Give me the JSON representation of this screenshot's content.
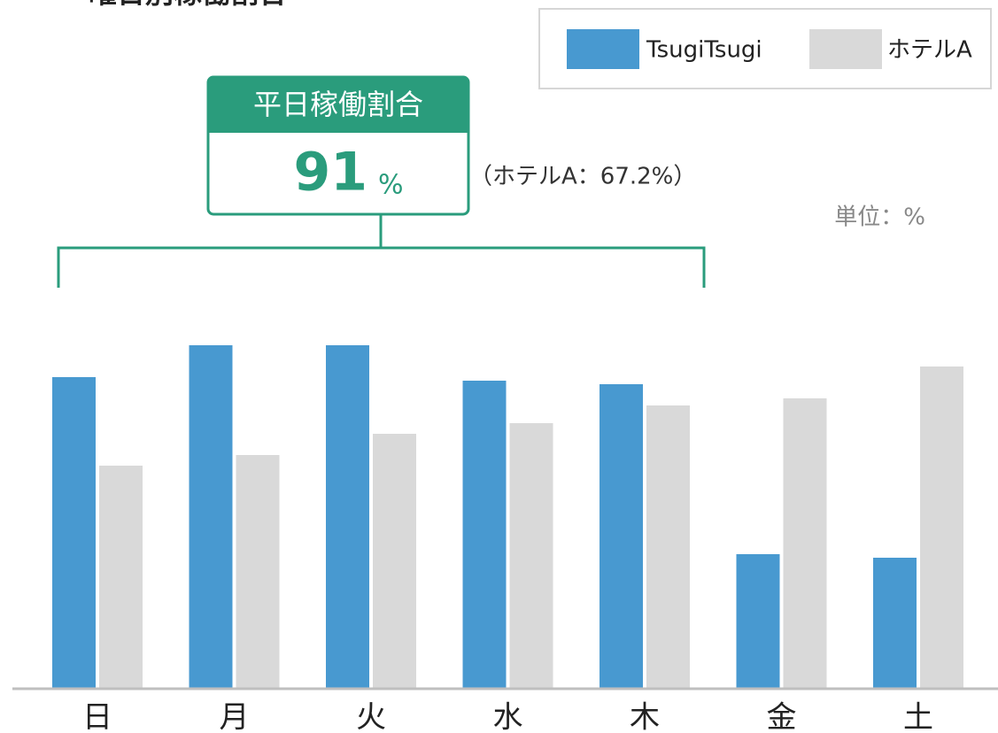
{
  "chart_data": {
    "type": "bar",
    "title": "曜日別稼働割合",
    "unit_label": "単位：%",
    "categories": [
      "日",
      "月",
      "火",
      "水",
      "木",
      "金",
      "土"
    ],
    "series": [
      {
        "name": "TsugiTsugi",
        "color": "#4899d0",
        "values": [
          88,
          97,
          97,
          87,
          86,
          38,
          37
        ]
      },
      {
        "name": "ホテルA",
        "color": "#d9d9d9",
        "values": [
          63,
          66,
          72,
          75,
          80,
          82,
          91
        ]
      }
    ],
    "ylim": [
      0,
      100
    ],
    "callout": {
      "title": "平日稼働割合",
      "value": 91,
      "unit": "%",
      "note": "（ホテルA：67.2%）"
    }
  }
}
